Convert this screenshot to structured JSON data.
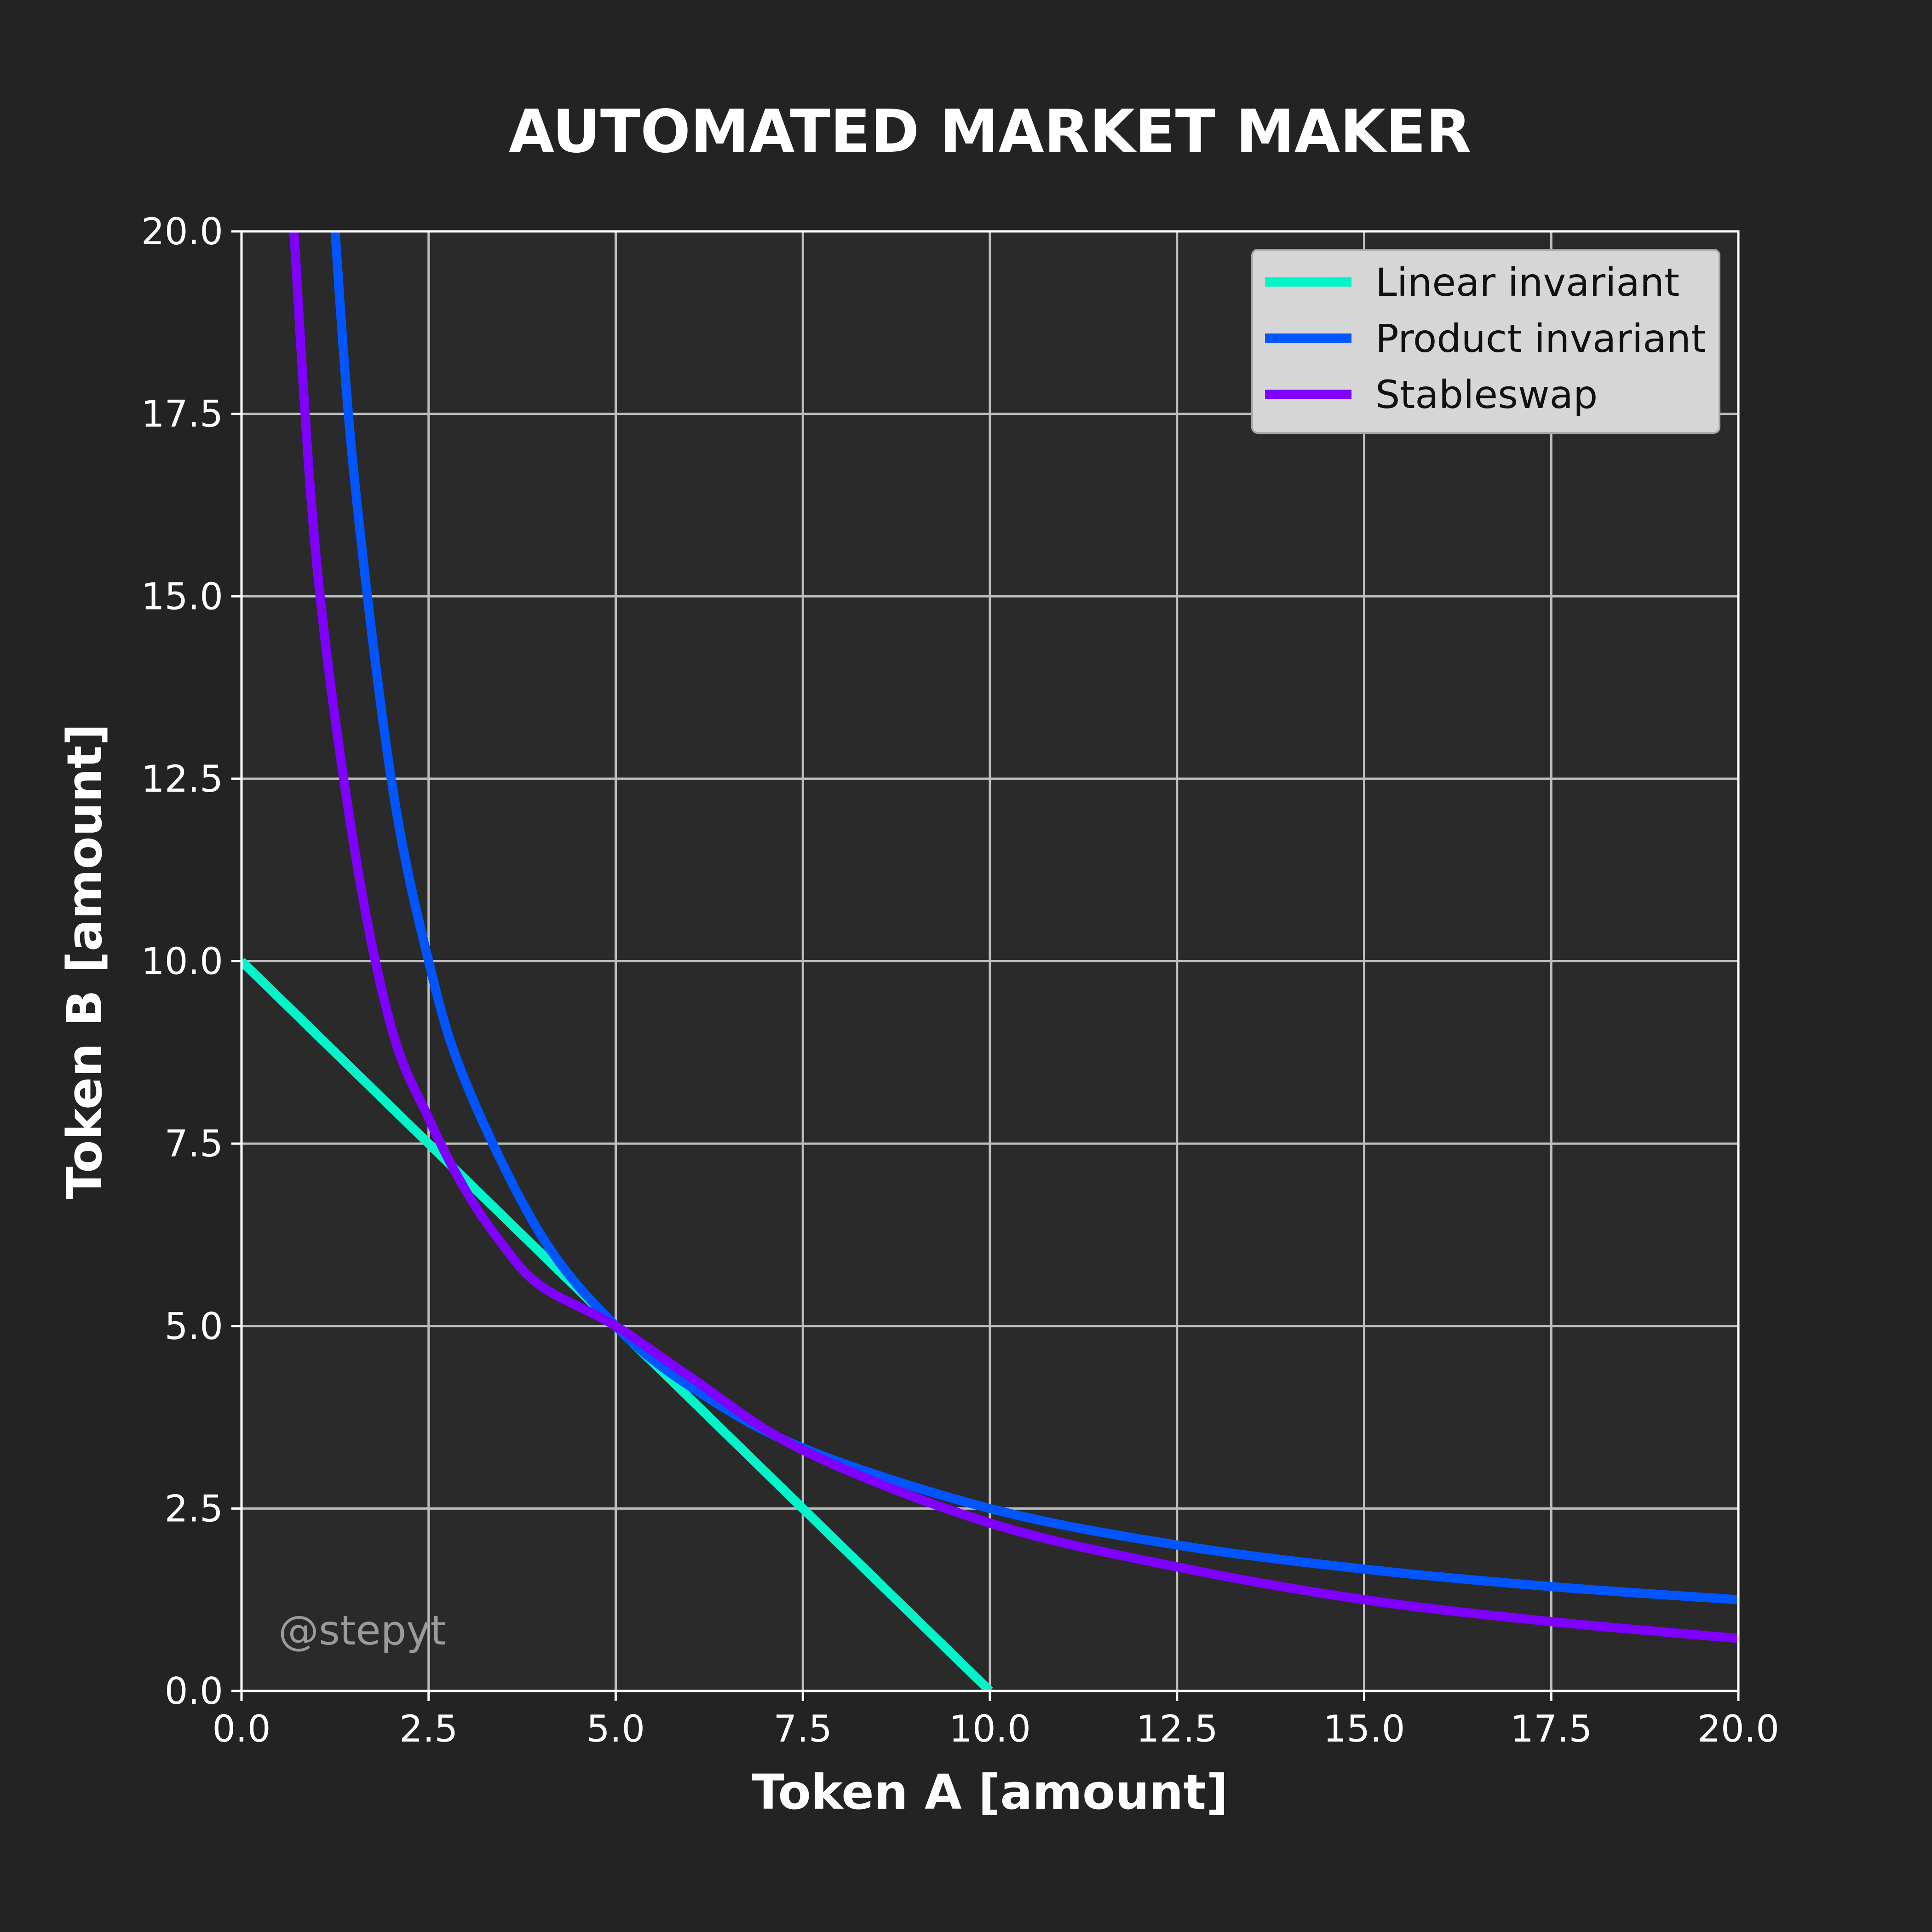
{
  "chart_data": {
    "type": "line",
    "title": "AUTOMATED MARKET MAKER",
    "xlabel": "Token A [amount]",
    "ylabel": "Token B [amount]",
    "xlim": [
      0,
      20
    ],
    "ylim": [
      0,
      20
    ],
    "xticks": [
      "0.0",
      "2.5",
      "5.0",
      "7.5",
      "10.0",
      "12.5",
      "15.0",
      "17.5",
      "20.0"
    ],
    "yticks": [
      "0.0",
      "2.5",
      "5.0",
      "7.5",
      "10.0",
      "12.5",
      "15.0",
      "17.5",
      "20.0"
    ],
    "grid": true,
    "legend_position": "top-right",
    "watermark": "@stepyt",
    "colors": {
      "background": "#232323",
      "plot_background": "#2a2a2a",
      "grid": "#bdbdbd",
      "axis": "#ffffff",
      "text": "#ffffff",
      "legend_background": "#d6d6d6",
      "legend_text": "#111111",
      "watermark": "#9a9a9a"
    },
    "series": [
      {
        "name": "Linear invariant",
        "color": "#00f5c8",
        "x": [
          0,
          2.5,
          5,
          7.5,
          10
        ],
        "y": [
          10,
          7.5,
          5,
          2.5,
          0
        ]
      },
      {
        "name": "Product invariant",
        "color": "#0055ff",
        "x": [
          1.25,
          1.5,
          2,
          2.5,
          3,
          4,
          5,
          6,
          7.5,
          10,
          12.5,
          15,
          17.5,
          20
        ],
        "y": [
          20,
          16.7,
          12.5,
          10,
          8.33,
          6.25,
          5,
          4.17,
          3.33,
          2.5,
          2,
          1.67,
          1.43,
          1.25
        ]
      },
      {
        "name": "Stableswap",
        "color": "#7f00ff",
        "x": [
          0.7,
          1,
          1.5,
          2,
          2.5,
          3,
          3.5,
          4,
          5,
          6,
          7.5,
          10,
          12.5,
          15,
          17.5,
          20
        ],
        "y": [
          20,
          15.5,
          11.6,
          9.1,
          7.85,
          6.85,
          6.1,
          5.55,
          5,
          4.3,
          3.3,
          2.3,
          1.7,
          1.25,
          0.95,
          0.72
        ]
      }
    ]
  }
}
